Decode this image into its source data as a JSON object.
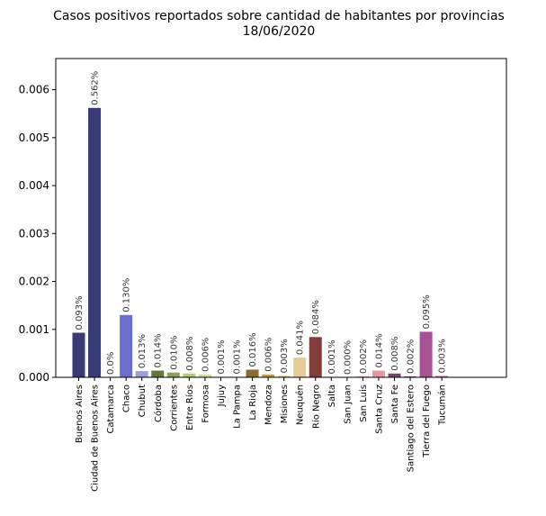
{
  "chart_data": {
    "type": "bar",
    "title_line1": "Casos positivos reportados sobre cantidad de habitantes por provincias",
    "title_line2": "18/06/2020",
    "xlabel": "",
    "ylabel": "",
    "ylim": [
      0,
      0.00665
    ],
    "yticks": [
      {
        "value": 0.0,
        "label": "0.000"
      },
      {
        "value": 0.001,
        "label": "0.001"
      },
      {
        "value": 0.002,
        "label": "0.002"
      },
      {
        "value": 0.003,
        "label": "0.003"
      },
      {
        "value": 0.004,
        "label": "0.004"
      },
      {
        "value": 0.005,
        "label": "0.005"
      },
      {
        "value": 0.006,
        "label": "0.006"
      }
    ],
    "grid": false,
    "categories": [
      "Buenos Aires",
      "Ciudad de Buenos Aires",
      "Catamarca",
      "Chaco",
      "Chubut",
      "Córdoba",
      "Corrientes",
      "Entre Ríos",
      "Formosa",
      "Jujuy",
      "La Pampa",
      "La Rioja",
      "Mendoza",
      "Misiones",
      "Neuquén",
      "Río Negro",
      "Salta",
      "San Juan",
      "San Luis",
      "Santa Cruz",
      "Santa Fe",
      "Santiago del Estero",
      "Tierra del Fuego",
      "Tucumán"
    ],
    "values": [
      0.00093,
      0.00562,
      0.0,
      0.0013,
      0.00013,
      0.00014,
      0.0001,
      8e-05,
      6e-05,
      1e-05,
      1e-05,
      0.00016,
      6e-05,
      3e-05,
      0.00041,
      0.00084,
      1e-05,
      0.0,
      2e-05,
      0.00014,
      8e-05,
      2e-05,
      0.00095,
      3e-05
    ],
    "labels": [
      "0.093%",
      "0.562%",
      "0.0%",
      "0.130%",
      "0.013%",
      "0.014%",
      "0.010%",
      "0.008%",
      "0.006%",
      "0.001%",
      "0.001%",
      "0.016%",
      "0.006%",
      "0.003%",
      "0.041%",
      "0.084%",
      "0.001%",
      "0.000%",
      "0.002%",
      "0.014%",
      "0.008%",
      "0.002%",
      "0.095%",
      "0.003%"
    ],
    "colors": [
      "#393b79",
      "#393b79",
      "#5254a3",
      "#6b6ecf",
      "#9c9ede",
      "#637939",
      "#8ca252",
      "#b5cf6b",
      "#cedb9c",
      "#8c6d31",
      "#bd9e39",
      "#8c6d31",
      "#bd9e39",
      "#e7ba52",
      "#e7cb94",
      "#843c39",
      "#ad494a",
      "#d6616b",
      "#e7969c",
      "#e7969c",
      "#7b4173",
      "#a55194",
      "#a55194",
      "#ce6dbd"
    ]
  }
}
